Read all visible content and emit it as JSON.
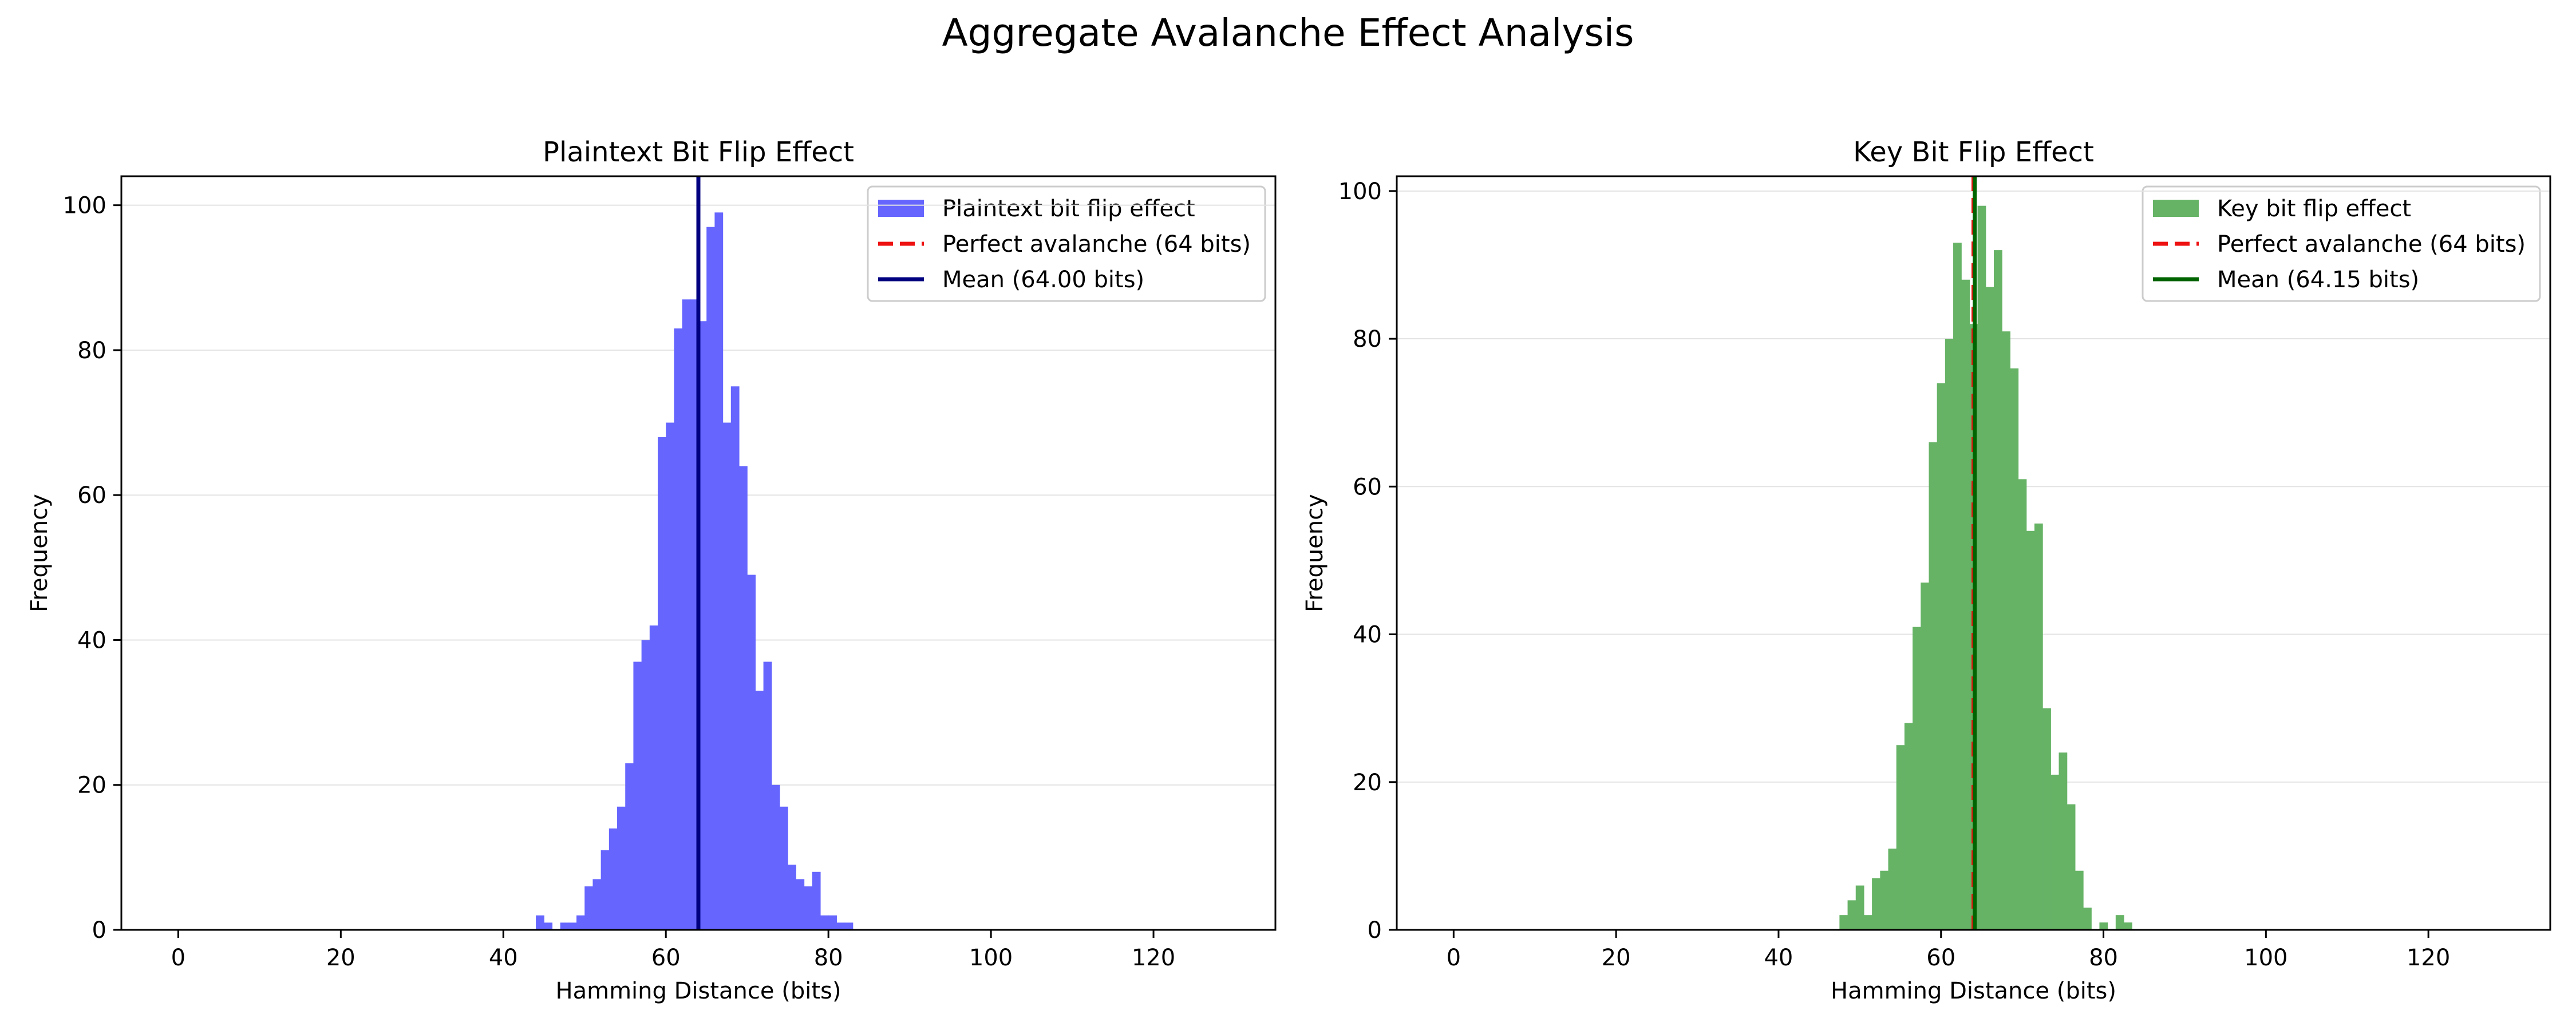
{
  "figure": {
    "title": "Aggregate Avalanche Effect Analysis"
  },
  "chart_data": [
    {
      "type": "bar",
      "title": "Plaintext Bit Flip Effect",
      "xlabel": "Hamming Distance (bits)",
      "ylabel": "Frequency",
      "xlim": [
        -7,
        135
      ],
      "ylim": [
        0,
        104
      ],
      "xticks": [
        0,
        20,
        40,
        60,
        80,
        100,
        120
      ],
      "yticks": [
        0,
        20,
        40,
        60,
        80,
        100
      ],
      "grid": "horizontal",
      "legend_position": "top-right",
      "bin_width": 1,
      "bins_start": [
        44,
        45,
        46,
        47,
        48,
        49,
        50,
        51,
        52,
        53,
        54,
        55,
        56,
        57,
        58,
        59,
        60,
        61,
        62,
        63,
        64,
        65,
        66,
        67,
        68,
        69,
        70,
        71,
        72,
        73,
        74,
        75,
        76,
        77,
        78,
        79,
        80,
        81,
        82
      ],
      "counts": [
        2,
        1,
        0,
        1,
        1,
        2,
        6,
        7,
        11,
        14,
        17,
        23,
        37,
        40,
        42,
        68,
        70,
        83,
        87,
        87,
        84,
        97,
        99,
        70,
        75,
        64,
        49,
        33,
        37,
        20,
        17,
        9,
        7,
        6,
        8,
        2,
        2,
        1,
        1
      ],
      "series": [
        {
          "name": "Plaintext bit flip effect",
          "kind": "histogram",
          "color": "#6666ff"
        },
        {
          "name": "Perfect avalanche (64 bits)",
          "kind": "vline",
          "x": 64,
          "color": "#ee1111",
          "style": "dashed"
        },
        {
          "name": "Mean (64.00 bits)",
          "kind": "vline",
          "x": 64.0,
          "color": "#000080",
          "style": "solid"
        }
      ]
    },
    {
      "type": "bar",
      "title": "Key Bit Flip Effect",
      "xlabel": "Hamming Distance (bits)",
      "ylabel": "Frequency",
      "xlim": [
        -7,
        135
      ],
      "ylim": [
        0,
        102
      ],
      "xticks": [
        0,
        20,
        40,
        60,
        80,
        100,
        120
      ],
      "yticks": [
        0,
        20,
        40,
        60,
        80,
        100
      ],
      "grid": "horizontal",
      "legend_position": "top-right",
      "bin_width": 1,
      "bins_start": [
        47.5,
        48.5,
        49.5,
        50.5,
        51.5,
        52.5,
        53.5,
        54.5,
        55.5,
        56.5,
        57.5,
        58.5,
        59.5,
        60.5,
        61.5,
        62.5,
        63.5,
        64.5,
        65.5,
        66.5,
        67.5,
        68.5,
        69.5,
        70.5,
        71.5,
        72.5,
        73.5,
        74.5,
        75.5,
        76.5,
        77.5,
        78.5,
        79.5,
        80.5,
        81.5,
        82.5
      ],
      "counts": [
        2,
        4,
        6,
        2,
        7,
        8,
        11,
        25,
        28,
        41,
        47,
        66,
        74,
        80,
        93,
        88,
        82,
        98,
        87,
        92,
        81,
        76,
        61,
        54,
        55,
        30,
        21,
        24,
        17,
        8,
        3,
        0,
        1,
        0,
        2,
        1
      ],
      "series": [
        {
          "name": "Key bit flip effect",
          "kind": "histogram",
          "color": "#66b366"
        },
        {
          "name": "Perfect avalanche (64 bits)",
          "kind": "vline",
          "x": 64,
          "color": "#ee1111",
          "style": "dashed"
        },
        {
          "name": "Mean (64.15 bits)",
          "kind": "vline",
          "x": 64.15,
          "color": "#006400",
          "style": "solid"
        }
      ]
    }
  ]
}
